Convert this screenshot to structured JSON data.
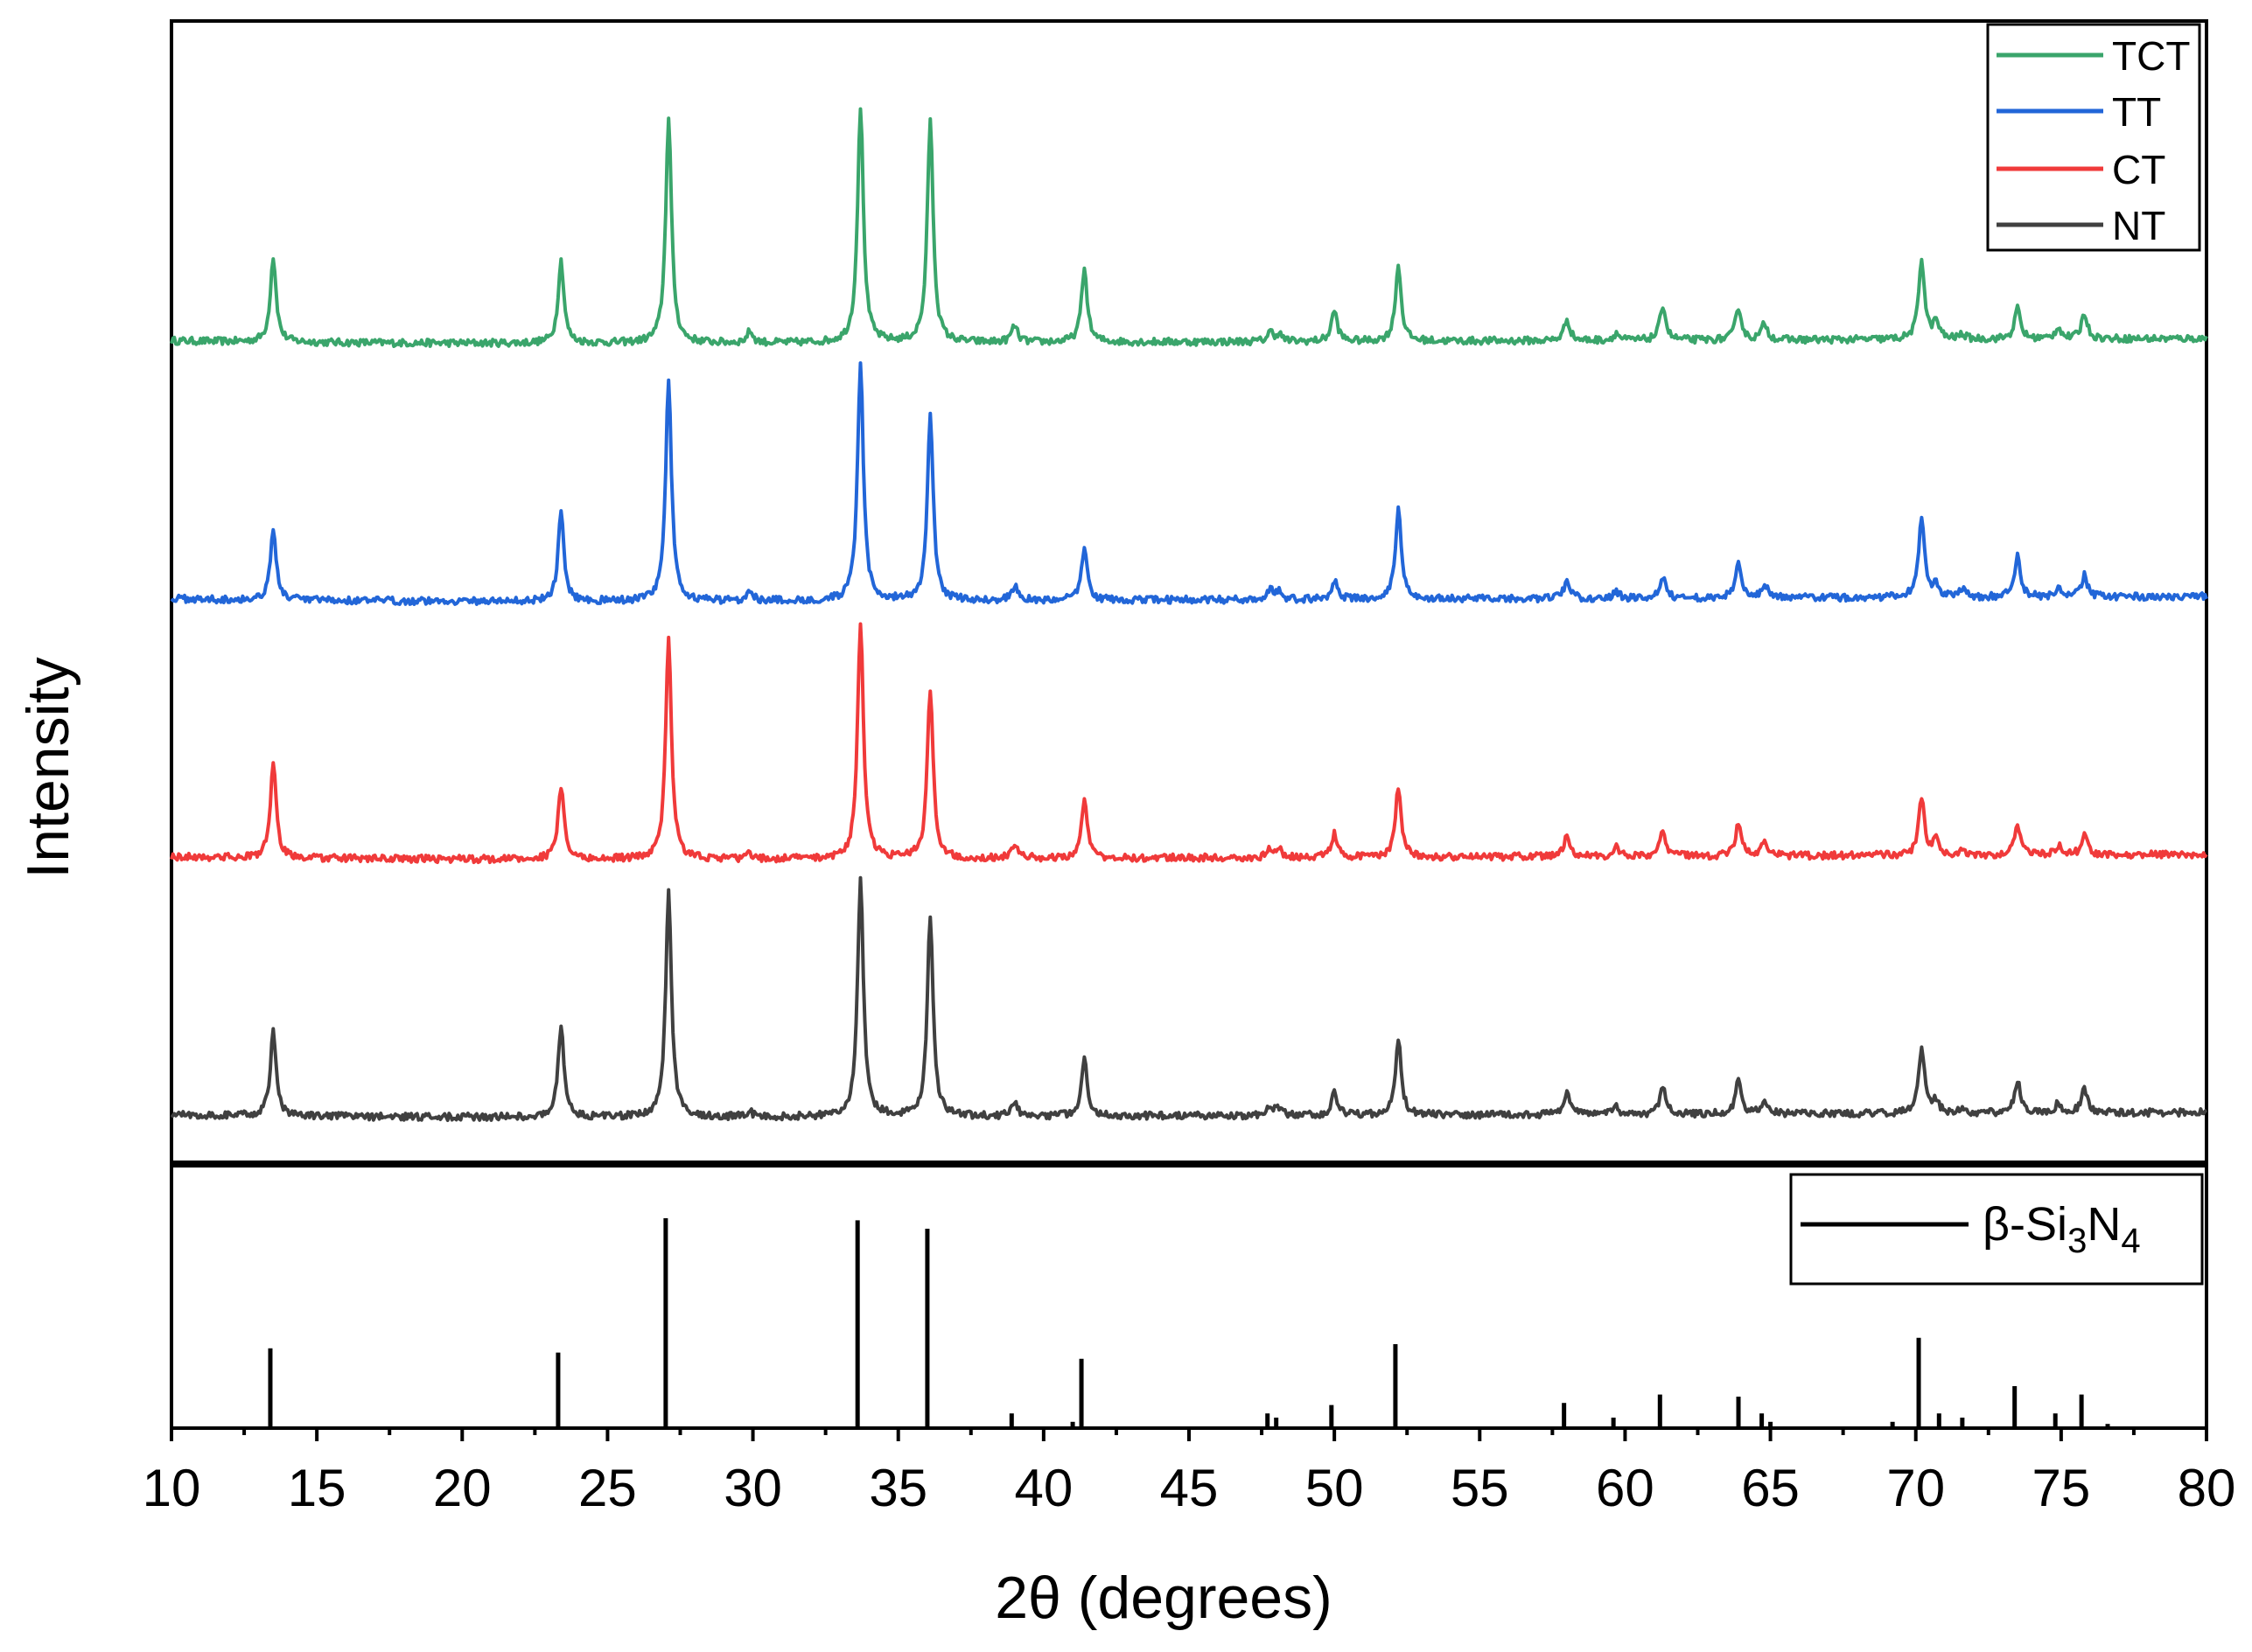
{
  "chart_data": {
    "type": "line",
    "xlabel": "2θ (degrees)",
    "ylabel": "Intensity",
    "xlim": [
      10,
      80
    ],
    "x_ticks": [
      10,
      15,
      20,
      25,
      30,
      35,
      40,
      45,
      50,
      55,
      60,
      65,
      70,
      75,
      80
    ],
    "legend_position": "top-right",
    "peaks": [
      {
        "x": 13.5,
        "NT": 0.36,
        "CT": 0.4,
        "TT": 0.3,
        "TCT": 0.36
      },
      {
        "x": 23.4,
        "NT": 0.39,
        "CT": 0.31,
        "TT": 0.37,
        "TCT": 0.35
      },
      {
        "x": 27.1,
        "NT": 0.95,
        "CT": 0.93,
        "TT": 0.93,
        "TCT": 0.95
      },
      {
        "x": 29.9,
        "NT": 0.02,
        "CT": 0.02,
        "TT": 0.05,
        "TCT": 0.05
      },
      {
        "x": 33.7,
        "NT": 1.0,
        "CT": 1.0,
        "TT": 1.0,
        "TCT": 1.0
      },
      {
        "x": 36.1,
        "NT": 0.85,
        "CT": 0.72,
        "TT": 0.78,
        "TCT": 0.94
      },
      {
        "x": 39.0,
        "NT": 0.06,
        "CT": 0.06,
        "TT": 0.06,
        "TCT": 0.07
      },
      {
        "x": 41.4,
        "NT": 0.25,
        "CT": 0.25,
        "TT": 0.22,
        "TCT": 0.31
      },
      {
        "x": 47.8,
        "NT": 0.04,
        "CT": 0.04,
        "TT": 0.04,
        "TCT": 0.04
      },
      {
        "x": 48.1,
        "NT": 0.03,
        "CT": 0.03,
        "TT": 0.03,
        "TCT": 0.03
      },
      {
        "x": 50.0,
        "NT": 0.1,
        "CT": 0.1,
        "TT": 0.08,
        "TCT": 0.13
      },
      {
        "x": 52.2,
        "NT": 0.32,
        "CT": 0.3,
        "TT": 0.38,
        "TCT": 0.32
      },
      {
        "x": 58.0,
        "NT": 0.1,
        "CT": 0.09,
        "TT": 0.08,
        "TCT": 0.09
      },
      {
        "x": 59.7,
        "NT": 0.03,
        "CT": 0.04,
        "TT": 0.03,
        "TCT": 0.03
      },
      {
        "x": 61.3,
        "NT": 0.11,
        "CT": 0.11,
        "TT": 0.09,
        "TCT": 0.15
      },
      {
        "x": 63.9,
        "NT": 0.14,
        "CT": 0.14,
        "TT": 0.15,
        "TCT": 0.14
      },
      {
        "x": 64.8,
        "NT": 0.06,
        "CT": 0.07,
        "TT": 0.06,
        "TCT": 0.07
      },
      {
        "x": 70.2,
        "NT": 0.28,
        "CT": 0.24,
        "TT": 0.34,
        "TCT": 0.34
      },
      {
        "x": 70.7,
        "NT": 0.05,
        "CT": 0.06,
        "TT": 0.05,
        "TCT": 0.07
      },
      {
        "x": 71.6,
        "NT": 0.02,
        "CT": 0.02,
        "TT": 0.03,
        "TCT": 0.02
      },
      {
        "x": 73.5,
        "NT": 0.14,
        "CT": 0.13,
        "TT": 0.18,
        "TCT": 0.13
      },
      {
        "x": 74.9,
        "NT": 0.04,
        "CT": 0.04,
        "TT": 0.04,
        "TCT": 0.05
      },
      {
        "x": 75.8,
        "NT": 0.1,
        "CT": 0.08,
        "TT": 0.09,
        "TCT": 0.11
      }
    ],
    "series": [
      {
        "name": "TCT",
        "color": "#3aa56b",
        "offset": 3.45
      },
      {
        "name": "TT",
        "color": "#2266d8",
        "offset": 2.3
      },
      {
        "name": "CT",
        "color": "#f03a3a",
        "offset": 1.15
      },
      {
        "name": "NT",
        "color": "#404040",
        "offset": 0.0
      }
    ],
    "reference": {
      "name_parts": {
        "base": "β-Si",
        "sub1": "3",
        "mid": "N",
        "sub2": "4"
      },
      "color": "#000000",
      "lines": [
        {
          "x": 13.4,
          "y": 0.38
        },
        {
          "x": 23.3,
          "y": 0.36
        },
        {
          "x": 27.0,
          "y": 1.0
        },
        {
          "x": 33.6,
          "y": 0.99
        },
        {
          "x": 36.0,
          "y": 0.95
        },
        {
          "x": 38.9,
          "y": 0.07
        },
        {
          "x": 41.0,
          "y": 0.03
        },
        {
          "x": 41.3,
          "y": 0.33
        },
        {
          "x": 47.7,
          "y": 0.07
        },
        {
          "x": 48.0,
          "y": 0.05
        },
        {
          "x": 49.9,
          "y": 0.11
        },
        {
          "x": 52.1,
          "y": 0.4
        },
        {
          "x": 57.9,
          "y": 0.12
        },
        {
          "x": 59.6,
          "y": 0.05
        },
        {
          "x": 61.2,
          "y": 0.16
        },
        {
          "x": 63.9,
          "y": 0.15
        },
        {
          "x": 64.7,
          "y": 0.07
        },
        {
          "x": 65.0,
          "y": 0.03
        },
        {
          "x": 69.2,
          "y": 0.03
        },
        {
          "x": 70.1,
          "y": 0.43
        },
        {
          "x": 70.8,
          "y": 0.07
        },
        {
          "x": 71.6,
          "y": 0.05
        },
        {
          "x": 73.4,
          "y": 0.2
        },
        {
          "x": 74.8,
          "y": 0.07
        },
        {
          "x": 75.7,
          "y": 0.16
        },
        {
          "x": 76.6,
          "y": 0.02
        }
      ]
    }
  }
}
